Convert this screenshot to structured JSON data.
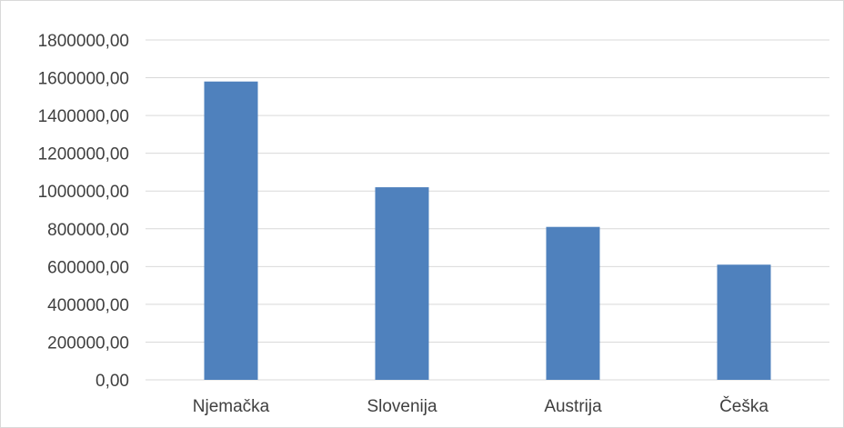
{
  "chart_data": {
    "type": "bar",
    "categories": [
      "Njemačka",
      "Slovenija",
      "Austrija",
      "Češka"
    ],
    "values": [
      1580000,
      1020000,
      810000,
      610000
    ],
    "ylim": [
      0,
      1800000
    ],
    "y_ticks": [
      "0,00",
      "200000,00",
      "400000,00",
      "600000,00",
      "800000,00",
      "1000000,00",
      "1200000,00",
      "1400000,00",
      "1600000,00",
      "1800000,00"
    ],
    "grid": true,
    "legend": "none",
    "colors": {
      "bar": "#4f81bd",
      "grid": "#d9d9d9",
      "text": "#404040"
    }
  }
}
